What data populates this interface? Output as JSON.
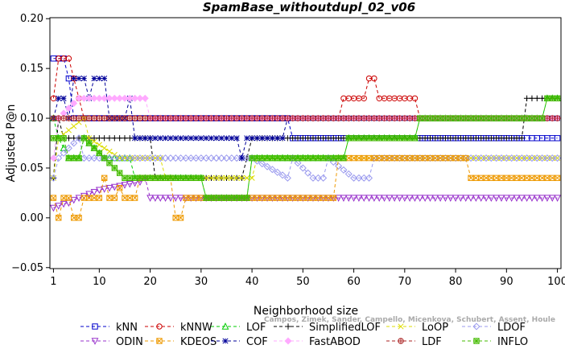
{
  "chart_data": {
    "type": "line",
    "title": "SpamBase_withoutdupl_02_v06",
    "xlabel": "Neighborhood size",
    "ylabel": "Adjusted P@n",
    "xlim": [
      1,
      100
    ],
    "ylim": [
      -0.05,
      0.2
    ],
    "xticks": [
      1,
      10,
      20,
      30,
      40,
      50,
      60,
      70,
      80,
      90,
      100
    ],
    "yticks": [
      -0.05,
      0.0,
      0.05,
      0.1,
      0.15,
      0.2
    ],
    "ytick_labels": [
      "−0.05",
      "0.00",
      "0.05",
      "0.10",
      "0.15",
      "0.20"
    ],
    "grid": false,
    "legend_position": "bottom",
    "series": [
      {
        "name": "kNN",
        "color": "#0000cc",
        "marker": "square",
        "segments": [
          [
            1,
            0.16
          ],
          [
            3,
            0.16
          ],
          [
            4,
            0.14
          ],
          [
            5,
            0.1
          ],
          [
            47,
            0.1
          ],
          [
            48,
            0.08
          ],
          [
            100,
            0.08
          ]
        ]
      },
      {
        "name": "kNNW",
        "color": "#cc0000",
        "marker": "circle",
        "segments": [
          [
            1,
            0.12
          ],
          [
            2,
            0.16
          ],
          [
            4,
            0.16
          ],
          [
            5,
            0.14
          ],
          [
            6,
            0.12
          ],
          [
            7,
            0.1
          ],
          [
            57,
            0.1
          ],
          [
            58,
            0.12
          ],
          [
            62,
            0.12
          ],
          [
            63,
            0.14
          ],
          [
            64,
            0.14
          ],
          [
            65,
            0.12
          ],
          [
            72,
            0.12
          ],
          [
            73,
            0.1
          ],
          [
            100,
            0.1
          ]
        ]
      },
      {
        "name": "LOF",
        "color": "#00cc00",
        "marker": "triangle-up",
        "segments": [
          [
            1,
            0.1
          ],
          [
            2,
            0.08
          ],
          [
            4,
            0.06
          ],
          [
            6,
            0.06
          ],
          [
            7,
            0.08
          ],
          [
            11,
            0.06
          ],
          [
            16,
            0.06
          ],
          [
            17,
            0.04
          ],
          [
            30,
            0.04
          ],
          [
            31,
            0.02
          ],
          [
            39,
            0.02
          ],
          [
            40,
            0.06
          ],
          [
            58,
            0.06
          ],
          [
            59,
            0.08
          ],
          [
            72,
            0.08
          ],
          [
            73,
            0.1
          ],
          [
            97,
            0.1
          ],
          [
            98,
            0.12
          ],
          [
            100,
            0.12
          ]
        ]
      },
      {
        "name": "SimplifiedLOF",
        "color": "#000000",
        "marker": "plus",
        "segments": [
          [
            1,
            0.04
          ],
          [
            2,
            0.1
          ],
          [
            3,
            0.08
          ],
          [
            20,
            0.08
          ],
          [
            21,
            0.04
          ],
          [
            38,
            0.04
          ],
          [
            39,
            0.06
          ],
          [
            40,
            0.08
          ],
          [
            93,
            0.08
          ],
          [
            94,
            0.12
          ],
          [
            100,
            0.12
          ]
        ]
      },
      {
        "name": "LoOP",
        "color": "#dddd00",
        "marker": "cross",
        "segments": [
          [
            1,
            0.04
          ],
          [
            2,
            0.08
          ],
          [
            7,
            0.1
          ],
          [
            8,
            0.08
          ],
          [
            14,
            0.06
          ],
          [
            22,
            0.06
          ],
          [
            23,
            0.04
          ],
          [
            40,
            0.04
          ],
          [
            41,
            0.06
          ],
          [
            100,
            0.06
          ]
        ]
      },
      {
        "name": "LDOF",
        "color": "#9999ee",
        "marker": "diamond",
        "segments": [
          [
            1,
            0.04
          ],
          [
            2,
            0.06
          ],
          [
            6,
            0.08
          ],
          [
            7,
            0.06
          ],
          [
            40,
            0.06
          ],
          [
            47,
            0.04
          ],
          [
            48,
            0.06
          ],
          [
            52,
            0.04
          ],
          [
            54,
            0.04
          ],
          [
            55,
            0.06
          ],
          [
            60,
            0.04
          ],
          [
            63,
            0.04
          ],
          [
            64,
            0.06
          ],
          [
            100,
            0.06
          ]
        ]
      },
      {
        "name": "ODIN",
        "color": "#9933cc",
        "marker": "triangle-down",
        "segments": [
          [
            1,
            0.01
          ],
          [
            2,
            0.012
          ],
          [
            3,
            0.014
          ],
          [
            4,
            0.015
          ],
          [
            5,
            0.018
          ],
          [
            6,
            0.02
          ],
          [
            7,
            0.022
          ],
          [
            8,
            0.024
          ],
          [
            9,
            0.026
          ],
          [
            10,
            0.028
          ],
          [
            12,
            0.03
          ],
          [
            14,
            0.032
          ],
          [
            16,
            0.034
          ],
          [
            18,
            0.036
          ],
          [
            19,
            0.04
          ],
          [
            20,
            0.02
          ],
          [
            100,
            0.02
          ]
        ]
      },
      {
        "name": "KDEOS",
        "color": "#ee9900",
        "marker": "square-x",
        "segments": [
          [
            1,
            0.02
          ],
          [
            2,
            0.0
          ],
          [
            3,
            0.02
          ],
          [
            4,
            0.02
          ],
          [
            5,
            0.0
          ],
          [
            6,
            0.0
          ],
          [
            7,
            0.02
          ],
          [
            10,
            0.02
          ],
          [
            11,
            0.04
          ],
          [
            12,
            0.02
          ],
          [
            13,
            0.02
          ],
          [
            14,
            0.03
          ],
          [
            15,
            0.02
          ],
          [
            17,
            0.02
          ],
          [
            18,
            0.04
          ],
          [
            24,
            0.04
          ],
          [
            25,
            0.0
          ],
          [
            26,
            0.0
          ],
          [
            27,
            0.02
          ],
          [
            56,
            0.02
          ],
          [
            57,
            0.06
          ],
          [
            82,
            0.06
          ],
          [
            83,
            0.04
          ],
          [
            100,
            0.04
          ]
        ]
      },
      {
        "name": "COF",
        "color": "#000099",
        "marker": "asterisk",
        "segments": [
          [
            1,
            0.1
          ],
          [
            2,
            0.12
          ],
          [
            3,
            0.12
          ],
          [
            4,
            0.1
          ],
          [
            5,
            0.14
          ],
          [
            7,
            0.14
          ],
          [
            8,
            0.12
          ],
          [
            9,
            0.14
          ],
          [
            11,
            0.14
          ],
          [
            12,
            0.1
          ],
          [
            15,
            0.1
          ],
          [
            16,
            0.12
          ],
          [
            17,
            0.08
          ],
          [
            37,
            0.08
          ],
          [
            38,
            0.06
          ],
          [
            39,
            0.08
          ],
          [
            46,
            0.08
          ],
          [
            47,
            0.1
          ],
          [
            100,
            0.1
          ]
        ]
      },
      {
        "name": "FastABOD",
        "color": "#ffaaff",
        "marker": "diamond-filled",
        "segments": [
          [
            1,
            0.06
          ],
          [
            2,
            0.1
          ],
          [
            6,
            0.12
          ],
          [
            19,
            0.12
          ],
          [
            20,
            0.1
          ],
          [
            100,
            0.1
          ]
        ]
      },
      {
        "name": "LDF",
        "color": "#aa2222",
        "marker": "circle-plus",
        "segments": [
          [
            1,
            0.1
          ],
          [
            100,
            0.1
          ]
        ]
      },
      {
        "name": "INFLO",
        "color": "#44bb00",
        "marker": "square-star",
        "segments": [
          [
            1,
            0.08
          ],
          [
            3,
            0.08
          ],
          [
            4,
            0.06
          ],
          [
            6,
            0.06
          ],
          [
            7,
            0.08
          ],
          [
            11,
            0.06
          ],
          [
            15,
            0.04
          ],
          [
            30,
            0.04
          ],
          [
            31,
            0.02
          ],
          [
            39,
            0.02
          ],
          [
            40,
            0.06
          ],
          [
            58,
            0.06
          ],
          [
            59,
            0.08
          ],
          [
            72,
            0.08
          ],
          [
            73,
            0.1
          ],
          [
            97,
            0.1
          ],
          [
            98,
            0.12
          ],
          [
            100,
            0.12
          ]
        ]
      }
    ],
    "watermark": "Campos, Zimek, Sander, Campello, Micenkova, Schubert, Assent, Houle"
  }
}
